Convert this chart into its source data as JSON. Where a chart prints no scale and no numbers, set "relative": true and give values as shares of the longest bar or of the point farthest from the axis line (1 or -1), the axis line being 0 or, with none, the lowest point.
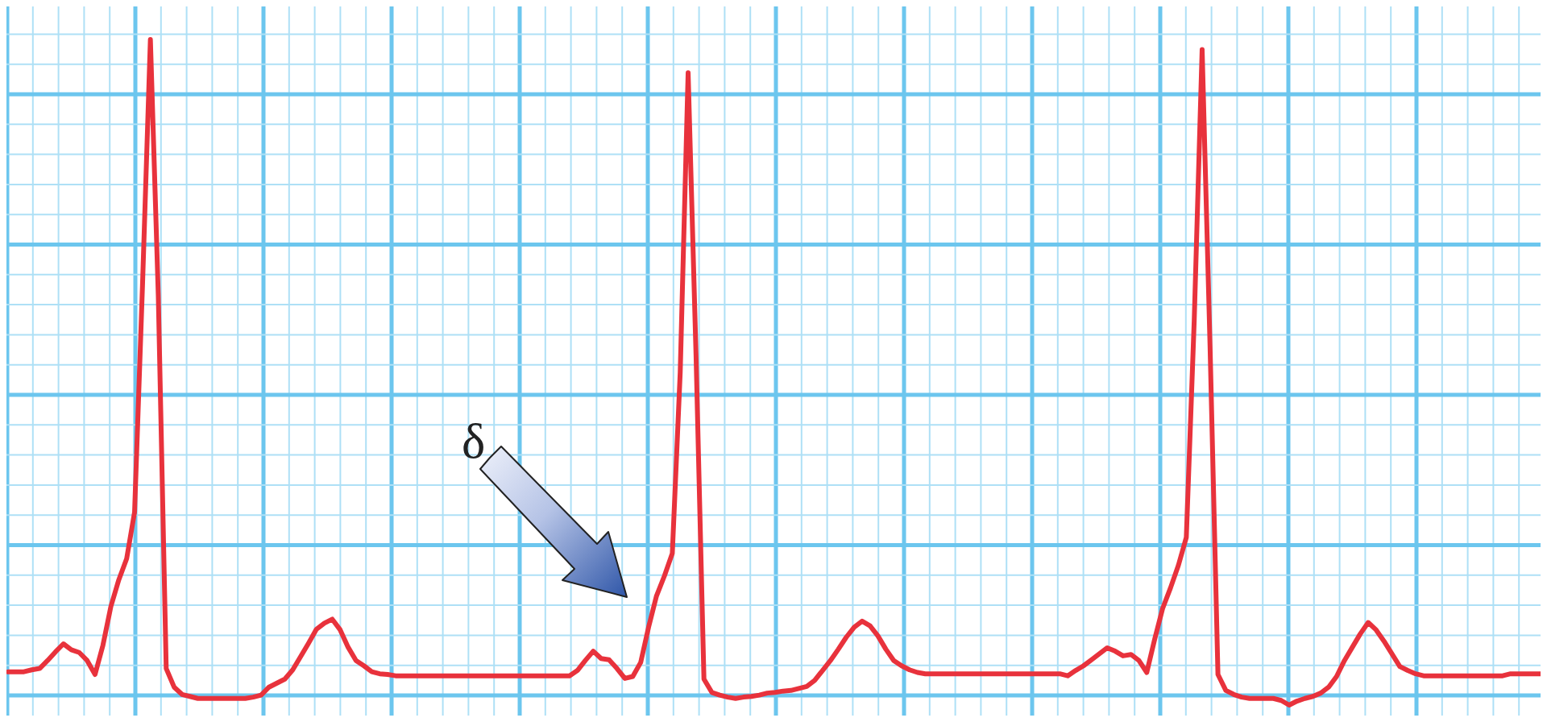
{
  "chart_data": {
    "type": "line",
    "relative": true,
    "grid": true,
    "color": "#e8323c",
    "line_style": "solid",
    "marker": "none",
    "annotations": [
      "δ"
    ],
    "categories": [
      null,
      null,
      null,
      null,
      null,
      null,
      null,
      null,
      null,
      null,
      null,
      null,
      null,
      null,
      null,
      null,
      null,
      null,
      null,
      null,
      null,
      null,
      null,
      null,
      null,
      null,
      null,
      null,
      null,
      null,
      null,
      null,
      null,
      null,
      null,
      null,
      null,
      null,
      null,
      null,
      null,
      null,
      null,
      null,
      null,
      null,
      null,
      null,
      null,
      null,
      null,
      null,
      null,
      null,
      null,
      null,
      null,
      null,
      null,
      null,
      null,
      null,
      null,
      null,
      null,
      null,
      null,
      null,
      null,
      null,
      null,
      null,
      null,
      null,
      null,
      null,
      null,
      null,
      null,
      null,
      null,
      null,
      null,
      null,
      null,
      null,
      null,
      null,
      null,
      null,
      null,
      null,
      null,
      null,
      null,
      null,
      null,
      null,
      null,
      null,
      null,
      null,
      null,
      null,
      null,
      null,
      null,
      null,
      null,
      null,
      null,
      null,
      null,
      null,
      null,
      null,
      null,
      null,
      null,
      null,
      null,
      null,
      null,
      null,
      null,
      null,
      null,
      null,
      null,
      null,
      null,
      null,
      null,
      null,
      null,
      null,
      null,
      null,
      null,
      null,
      null,
      null,
      null,
      null,
      null,
      null,
      null,
      null,
      null,
      null,
      null,
      null,
      null,
      null,
      null,
      null,
      null,
      null,
      null,
      null,
      null,
      null,
      null,
      null,
      null,
      null,
      null,
      null,
      null,
      null,
      null,
      null,
      null,
      null,
      null,
      null,
      null,
      null,
      null,
      null,
      null,
      null,
      null,
      null,
      null,
      null,
      null,
      null,
      null,
      null,
      null,
      null,
      null,
      null,
      null
    ],
    "values": [
      0.05,
      0.05,
      0.05,
      0.053,
      0.055,
      0.067,
      0.08,
      0.092,
      0.083,
      0.079,
      0.067,
      0.046,
      0.09,
      0.148,
      0.188,
      0.22,
      0.29,
      0.63,
      1,
      0.615,
      0.055,
      0.027,
      0.016,
      0.013,
      0.01,
      0.01,
      0.01,
      0.01,
      0.01,
      0.01,
      0.01,
      0.012,
      0.015,
      0.027,
      0.033,
      0.039,
      0.053,
      0.073,
      0.093,
      0.114,
      0.123,
      0.129,
      0.113,
      0.087,
      0.067,
      0.059,
      0.05,
      0.047,
      0.046,
      0.044,
      0.044,
      0.044,
      0.044,
      0.044,
      0.044,
      0.044,
      0.044,
      0.044,
      0.044,
      0.044,
      0.044,
      0.044,
      0.044,
      0.044,
      0.044,
      0.044,
      0.044,
      0.044,
      0.044,
      0.044,
      0.044,
      0.044,
      0.052,
      0.067,
      0.081,
      0.07,
      0.068,
      0.055,
      0.04,
      0.043,
      0.064,
      0.117,
      0.164,
      0.194,
      0.228,
      0.5,
      0.95,
      0.526,
      0.039,
      0.019,
      0.015,
      0.012,
      0.01,
      0.012,
      0.013,
      0.015,
      0.018,
      0.019,
      0.021,
      0.022,
      0.025,
      0.028,
      0.037,
      0.052,
      0.067,
      0.084,
      0.102,
      0.117,
      0.126,
      0.119,
      0.104,
      0.084,
      0.067,
      0.059,
      0.053,
      0.049,
      0.047,
      0.047,
      0.047,
      0.047,
      0.047,
      0.047,
      0.047,
      0.047,
      0.047,
      0.047,
      0.047,
      0.047,
      0.047,
      0.047,
      0.047,
      0.047,
      0.047,
      0.047,
      0.044,
      0.052,
      0.059,
      0.068,
      0.077,
      0.086,
      0.081,
      0.074,
      0.076,
      0.067,
      0.049,
      0.099,
      0.145,
      0.176,
      0.21,
      0.252,
      0.578,
      0.985,
      0.54,
      0.046,
      0.022,
      0.016,
      0.012,
      0.01,
      0.01,
      0.01,
      0.01,
      0.007,
      0,
      0.006,
      0.01,
      0.013,
      0.018,
      0.027,
      0.043,
      0.067,
      0.087,
      0.107,
      0.124,
      0.113,
      0.096,
      0.077,
      0.058,
      0.052,
      0.047,
      0.044,
      0.044,
      0.044,
      0.044,
      0.044,
      0.044,
      0.044,
      0.044,
      0.044,
      0.044,
      0.044,
      0.047,
      0.047,
      0.047,
      0.047,
      0.047
    ]
  }
}
